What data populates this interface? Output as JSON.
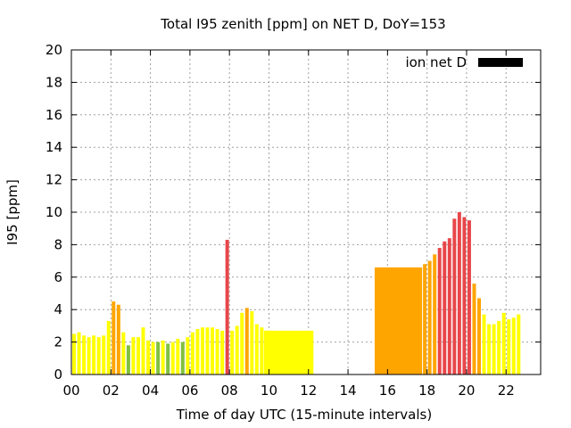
{
  "chart_data": {
    "type": "bar",
    "title": "Total I95 zenith [ppm] on NET D, DoY=153",
    "xlabel": "Time of day UTC (15-minute intervals)",
    "ylabel": "I95 [ppm]",
    "xlim": [
      0,
      23.75
    ],
    "ylim": [
      0,
      20
    ],
    "x_ticks": [
      0,
      2,
      4,
      6,
      8,
      10,
      12,
      14,
      16,
      18,
      20,
      22
    ],
    "x_tick_labels": [
      "00",
      "02",
      "04",
      "06",
      "08",
      "10",
      "12",
      "14",
      "16",
      "18",
      "20",
      "22"
    ],
    "y_ticks": [
      0,
      2,
      4,
      6,
      8,
      10,
      12,
      14,
      16,
      18,
      20
    ],
    "grid": true,
    "legend": {
      "label": "ion net D",
      "color": "#000000",
      "placement": "top-right"
    },
    "colors": {
      "low": "#ffff00",
      "mid": "#ffa500",
      "high": "#e8474a",
      "quiet": "#80c040"
    },
    "bar_width_hours": 0.18,
    "bars": [
      {
        "x": 0.0,
        "y": 2.5,
        "level": "low"
      },
      {
        "x": 0.25,
        "y": 2.6,
        "level": "low"
      },
      {
        "x": 0.5,
        "y": 2.4,
        "level": "low"
      },
      {
        "x": 0.75,
        "y": 2.3,
        "level": "low"
      },
      {
        "x": 1.0,
        "y": 2.4,
        "level": "low"
      },
      {
        "x": 1.25,
        "y": 2.3,
        "level": "low"
      },
      {
        "x": 1.5,
        "y": 2.4,
        "level": "low"
      },
      {
        "x": 1.75,
        "y": 3.3,
        "level": "low"
      },
      {
        "x": 2.0,
        "y": 4.5,
        "level": "mid"
      },
      {
        "x": 2.25,
        "y": 4.3,
        "level": "mid"
      },
      {
        "x": 2.5,
        "y": 2.6,
        "level": "low"
      },
      {
        "x": 2.75,
        "y": 1.8,
        "level": "quiet"
      },
      {
        "x": 3.0,
        "y": 2.3,
        "level": "low"
      },
      {
        "x": 3.25,
        "y": 2.3,
        "level": "low"
      },
      {
        "x": 3.5,
        "y": 2.9,
        "level": "low"
      },
      {
        "x": 3.75,
        "y": 2.1,
        "level": "low"
      },
      {
        "x": 4.0,
        "y": 2.0,
        "level": "low"
      },
      {
        "x": 4.25,
        "y": 2.0,
        "level": "quiet"
      },
      {
        "x": 4.5,
        "y": 2.1,
        "level": "low"
      },
      {
        "x": 4.75,
        "y": 1.9,
        "level": "quiet"
      },
      {
        "x": 5.0,
        "y": 2.0,
        "level": "low"
      },
      {
        "x": 5.25,
        "y": 2.2,
        "level": "low"
      },
      {
        "x": 5.5,
        "y": 2.0,
        "level": "quiet"
      },
      {
        "x": 5.75,
        "y": 2.3,
        "level": "low"
      },
      {
        "x": 6.0,
        "y": 2.6,
        "level": "low"
      },
      {
        "x": 6.25,
        "y": 2.8,
        "level": "low"
      },
      {
        "x": 6.5,
        "y": 2.9,
        "level": "low"
      },
      {
        "x": 6.75,
        "y": 2.9,
        "level": "low"
      },
      {
        "x": 7.0,
        "y": 2.9,
        "level": "low"
      },
      {
        "x": 7.25,
        "y": 2.8,
        "level": "low"
      },
      {
        "x": 7.5,
        "y": 2.7,
        "level": "low"
      },
      {
        "x": 7.75,
        "y": 8.3,
        "level": "high"
      },
      {
        "x": 8.0,
        "y": 2.7,
        "level": "low"
      },
      {
        "x": 8.25,
        "y": 3.0,
        "level": "low"
      },
      {
        "x": 8.5,
        "y": 3.8,
        "level": "low"
      },
      {
        "x": 8.75,
        "y": 4.1,
        "level": "mid"
      },
      {
        "x": 9.0,
        "y": 3.9,
        "level": "low"
      },
      {
        "x": 9.25,
        "y": 3.1,
        "level": "low"
      },
      {
        "x": 9.5,
        "y": 2.9,
        "level": "low"
      },
      {
        "x": 9.75,
        "y": 2.7,
        "level": "low"
      },
      {
        "x": 17.75,
        "y": 6.8,
        "level": "mid"
      },
      {
        "x": 18.0,
        "y": 7.0,
        "level": "mid"
      },
      {
        "x": 18.25,
        "y": 7.4,
        "level": "mid"
      },
      {
        "x": 18.5,
        "y": 7.8,
        "level": "high"
      },
      {
        "x": 18.75,
        "y": 8.2,
        "level": "high"
      },
      {
        "x": 19.0,
        "y": 8.4,
        "level": "high"
      },
      {
        "x": 19.25,
        "y": 9.6,
        "level": "high"
      },
      {
        "x": 19.5,
        "y": 10.0,
        "level": "high"
      },
      {
        "x": 19.75,
        "y": 9.7,
        "level": "high"
      },
      {
        "x": 20.0,
        "y": 9.5,
        "level": "high"
      },
      {
        "x": 20.25,
        "y": 5.6,
        "level": "mid"
      },
      {
        "x": 20.5,
        "y": 4.7,
        "level": "mid"
      },
      {
        "x": 20.75,
        "y": 3.7,
        "level": "low"
      },
      {
        "x": 21.0,
        "y": 3.1,
        "level": "low"
      },
      {
        "x": 21.25,
        "y": 3.1,
        "level": "low"
      },
      {
        "x": 21.5,
        "y": 3.3,
        "level": "low"
      },
      {
        "x": 21.75,
        "y": 3.8,
        "level": "low"
      },
      {
        "x": 22.0,
        "y": 3.4,
        "level": "low"
      },
      {
        "x": 22.25,
        "y": 3.5,
        "level": "low"
      },
      {
        "x": 22.5,
        "y": 3.7,
        "level": "low"
      }
    ],
    "blocks": [
      {
        "x_start": 9.75,
        "x_end": 12.25,
        "y": 2.7,
        "level": "low"
      },
      {
        "x_start": 15.35,
        "x_end": 17.75,
        "y": 6.6,
        "level": "mid"
      }
    ]
  }
}
